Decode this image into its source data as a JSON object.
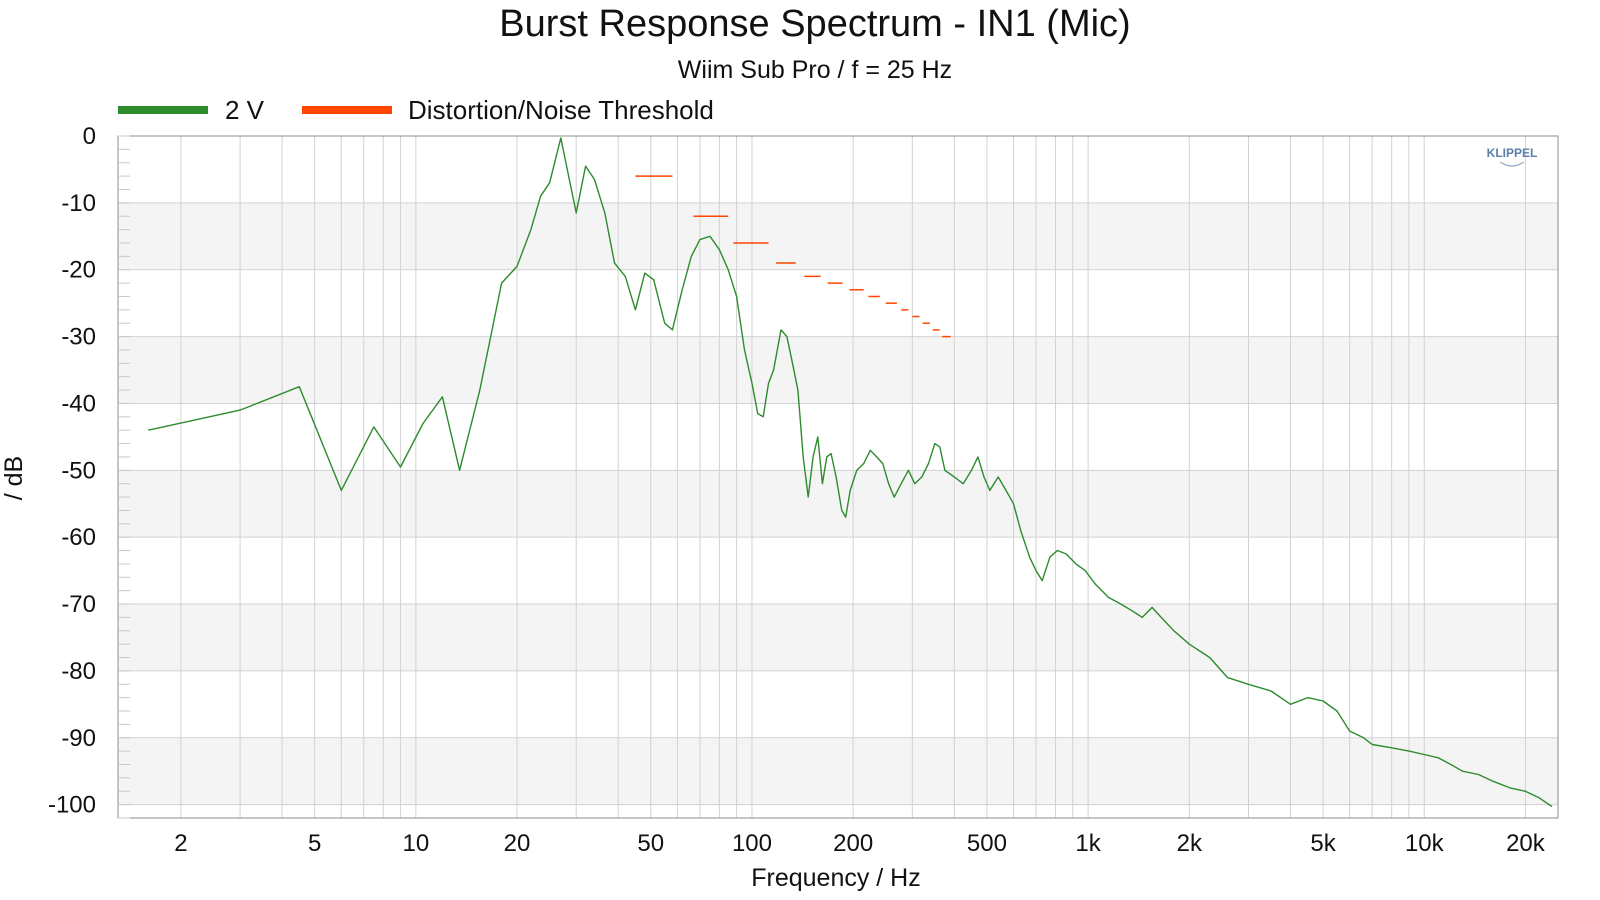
{
  "chart_data": {
    "type": "line",
    "title": "Burst Response Spectrum - IN1 (Mic)",
    "subtitle": "Wiim Sub Pro / f = 25 Hz",
    "xlabel": "Frequency / Hz",
    "ylabel": "/ dB",
    "x_scale": "log",
    "xlim": [
      1.3,
      25000
    ],
    "ylim": [
      -102,
      0
    ],
    "grid": true,
    "legend_position": "top-left",
    "logo": "KLIPPEL",
    "x_ticks": [
      {
        "value": 2,
        "label": "2"
      },
      {
        "value": 5,
        "label": "5"
      },
      {
        "value": 10,
        "label": "10"
      },
      {
        "value": 20,
        "label": "20"
      },
      {
        "value": 50,
        "label": "50"
      },
      {
        "value": 100,
        "label": "100"
      },
      {
        "value": 200,
        "label": "200"
      },
      {
        "value": 500,
        "label": "500"
      },
      {
        "value": 1000,
        "label": "1k"
      },
      {
        "value": 2000,
        "label": "2k"
      },
      {
        "value": 5000,
        "label": "5k"
      },
      {
        "value": 10000,
        "label": "10k"
      },
      {
        "value": 20000,
        "label": "20k"
      }
    ],
    "y_ticks": [
      {
        "value": 0,
        "label": "0"
      },
      {
        "value": -10,
        "label": "-10"
      },
      {
        "value": -20,
        "label": "-20"
      },
      {
        "value": -30,
        "label": "-30"
      },
      {
        "value": -40,
        "label": "-40"
      },
      {
        "value": -50,
        "label": "-50"
      },
      {
        "value": -60,
        "label": "-60"
      },
      {
        "value": -70,
        "label": "-70"
      },
      {
        "value": -80,
        "label": "-80"
      },
      {
        "value": -90,
        "label": "-90"
      },
      {
        "value": -100,
        "label": "-100"
      }
    ],
    "series": [
      {
        "name": "2 V",
        "color": "#2e8b2e",
        "style": "line",
        "points": [
          [
            1.6,
            -44
          ],
          [
            3.0,
            -41
          ],
          [
            4.5,
            -37.5
          ],
          [
            6.0,
            -53
          ],
          [
            7.5,
            -43.5
          ],
          [
            9.0,
            -49.5
          ],
          [
            10.5,
            -43
          ],
          [
            12.0,
            -39
          ],
          [
            13.5,
            -50
          ],
          [
            15.5,
            -38
          ],
          [
            18.0,
            -22
          ],
          [
            20.0,
            -19.5
          ],
          [
            22.0,
            -14
          ],
          [
            23.5,
            -9
          ],
          [
            25.0,
            -7
          ],
          [
            27.0,
            -0.3
          ],
          [
            30.0,
            -11.5
          ],
          [
            32.0,
            -4.5
          ],
          [
            34.0,
            -6.5
          ],
          [
            36.5,
            -11.5
          ],
          [
            39.0,
            -19
          ],
          [
            42.0,
            -21
          ],
          [
            45.0,
            -26
          ],
          [
            48.0,
            -20.5
          ],
          [
            51.0,
            -21.5
          ],
          [
            55.0,
            -28
          ],
          [
            58.0,
            -29
          ],
          [
            62.0,
            -23
          ],
          [
            66.0,
            -18
          ],
          [
            70.0,
            -15.5
          ],
          [
            75.0,
            -15
          ],
          [
            80.0,
            -17
          ],
          [
            85.0,
            -20
          ],
          [
            90.0,
            -24
          ],
          [
            95.0,
            -32
          ],
          [
            100.0,
            -37
          ],
          [
            104.0,
            -41.5
          ],
          [
            108.0,
            -42
          ],
          [
            112.0,
            -37
          ],
          [
            116.0,
            -35
          ],
          [
            122.0,
            -29
          ],
          [
            127.0,
            -30
          ],
          [
            132.0,
            -34
          ],
          [
            137.0,
            -38
          ],
          [
            142.0,
            -48
          ],
          [
            147.0,
            -54
          ],
          [
            152.0,
            -48
          ],
          [
            157.0,
            -45
          ],
          [
            162.0,
            -52
          ],
          [
            167.0,
            -48
          ],
          [
            172.0,
            -47.5
          ],
          [
            178.0,
            -51
          ],
          [
            185.0,
            -56
          ],
          [
            190.0,
            -57
          ],
          [
            196.0,
            -53
          ],
          [
            205.0,
            -50
          ],
          [
            215.0,
            -49
          ],
          [
            225.0,
            -47
          ],
          [
            235.0,
            -48
          ],
          [
            245.0,
            -49
          ],
          [
            255.0,
            -52
          ],
          [
            265.0,
            -54
          ],
          [
            278.0,
            -52
          ],
          [
            292.0,
            -50
          ],
          [
            305.0,
            -52
          ],
          [
            320.0,
            -51
          ],
          [
            335.0,
            -49
          ],
          [
            350.0,
            -46
          ],
          [
            362.0,
            -46.5
          ],
          [
            375.0,
            -50
          ],
          [
            400.0,
            -51
          ],
          [
            425.0,
            -52
          ],
          [
            450.0,
            -50
          ],
          [
            470.0,
            -48
          ],
          [
            490.0,
            -51
          ],
          [
            510.0,
            -53
          ],
          [
            540.0,
            -51
          ],
          [
            570.0,
            -53
          ],
          [
            600.0,
            -55
          ],
          [
            630.0,
            -59
          ],
          [
            670.0,
            -63
          ],
          [
            700.0,
            -65
          ],
          [
            730.0,
            -66.5
          ],
          [
            770.0,
            -63
          ],
          [
            810.0,
            -62
          ],
          [
            860.0,
            -62.5
          ],
          [
            920.0,
            -64
          ],
          [
            980.0,
            -65
          ],
          [
            1050.0,
            -67
          ],
          [
            1150.0,
            -69
          ],
          [
            1250.0,
            -70
          ],
          [
            1350.0,
            -71
          ],
          [
            1450.0,
            -72
          ],
          [
            1550.0,
            -70.5
          ],
          [
            1650.0,
            -72
          ],
          [
            1800.0,
            -74
          ],
          [
            2000.0,
            -76
          ],
          [
            2300.0,
            -78
          ],
          [
            2600.0,
            -81
          ],
          [
            3000.0,
            -82
          ],
          [
            3500.0,
            -83
          ],
          [
            4000.0,
            -85
          ],
          [
            4500.0,
            -84
          ],
          [
            5000.0,
            -84.5
          ],
          [
            5500.0,
            -86
          ],
          [
            6000.0,
            -89
          ],
          [
            6600.0,
            -90
          ],
          [
            7000.0,
            -91
          ],
          [
            8000.0,
            -91.5
          ],
          [
            9000.0,
            -92
          ],
          [
            10000.0,
            -92.5
          ],
          [
            11000.0,
            -93
          ],
          [
            12000.0,
            -94
          ],
          [
            13000.0,
            -95
          ],
          [
            14500.0,
            -95.5
          ],
          [
            16000.0,
            -96.5
          ],
          [
            18000.0,
            -97.5
          ],
          [
            20000.0,
            -98
          ],
          [
            22000.0,
            -99
          ],
          [
            24000.0,
            -100.3
          ]
        ]
      },
      {
        "name": "Distortion/Noise Threshold",
        "color": "#ff4500",
        "style": "segments",
        "segments": [
          {
            "x_start": 45,
            "x_end": 58,
            "y": -6
          },
          {
            "x_start": 67,
            "x_end": 85,
            "y": -12
          },
          {
            "x_start": 88,
            "x_end": 112,
            "y": -16
          },
          {
            "x_start": 118,
            "x_end": 135,
            "y": -19
          },
          {
            "x_start": 143,
            "x_end": 160,
            "y": -21
          },
          {
            "x_start": 168,
            "x_end": 186,
            "y": -22
          },
          {
            "x_start": 195,
            "x_end": 215,
            "y": -23
          },
          {
            "x_start": 222,
            "x_end": 240,
            "y": -24
          },
          {
            "x_start": 250,
            "x_end": 270,
            "y": -25
          },
          {
            "x_start": 278,
            "x_end": 292,
            "y": -26
          },
          {
            "x_start": 300,
            "x_end": 315,
            "y": -27
          },
          {
            "x_start": 322,
            "x_end": 338,
            "y": -28
          },
          {
            "x_start": 345,
            "x_end": 362,
            "y": -29
          },
          {
            "x_start": 368,
            "x_end": 390,
            "y": -30
          }
        ]
      }
    ]
  }
}
